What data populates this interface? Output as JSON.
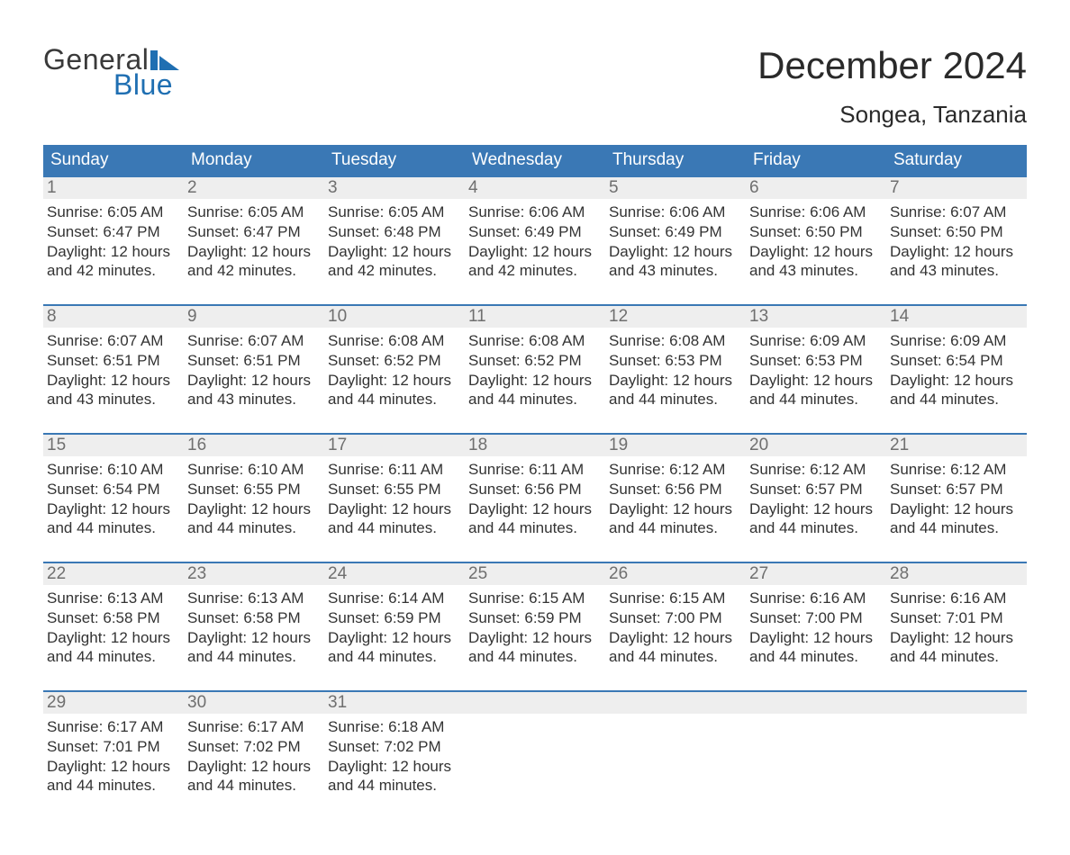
{
  "logo": {
    "word1": "General",
    "word2": "Blue",
    "accent_color": "#1f6fb2",
    "text_color": "#3a3a3a"
  },
  "title": "December 2024",
  "location": "Songea, Tanzania",
  "colors": {
    "header_bg": "#3a78b5",
    "header_text": "#ffffff",
    "daynum_bg": "#eeeeee",
    "daynum_border": "#3a78b5",
    "daynum_text": "#6f6f6f",
    "body_text": "#333333",
    "page_bg": "#ffffff"
  },
  "typography": {
    "title_fontsize": 42,
    "location_fontsize": 26,
    "weekday_fontsize": 19,
    "daynum_fontsize": 19,
    "details_fontsize": 17
  },
  "weekdays": [
    "Sunday",
    "Monday",
    "Tuesday",
    "Wednesday",
    "Thursday",
    "Friday",
    "Saturday"
  ],
  "labels": {
    "sunrise": "Sunrise:",
    "sunset": "Sunset:",
    "daylight": "Daylight:",
    "hours_word": "hours",
    "and_word": "and",
    "minutes_word": "minutes."
  },
  "weeks": [
    [
      {
        "n": "1",
        "sunrise": "6:05 AM",
        "sunset": "6:47 PM",
        "dl_h": "12",
        "dl_m": "42"
      },
      {
        "n": "2",
        "sunrise": "6:05 AM",
        "sunset": "6:47 PM",
        "dl_h": "12",
        "dl_m": "42"
      },
      {
        "n": "3",
        "sunrise": "6:05 AM",
        "sunset": "6:48 PM",
        "dl_h": "12",
        "dl_m": "42"
      },
      {
        "n": "4",
        "sunrise": "6:06 AM",
        "sunset": "6:49 PM",
        "dl_h": "12",
        "dl_m": "42"
      },
      {
        "n": "5",
        "sunrise": "6:06 AM",
        "sunset": "6:49 PM",
        "dl_h": "12",
        "dl_m": "43"
      },
      {
        "n": "6",
        "sunrise": "6:06 AM",
        "sunset": "6:50 PM",
        "dl_h": "12",
        "dl_m": "43"
      },
      {
        "n": "7",
        "sunrise": "6:07 AM",
        "sunset": "6:50 PM",
        "dl_h": "12",
        "dl_m": "43"
      }
    ],
    [
      {
        "n": "8",
        "sunrise": "6:07 AM",
        "sunset": "6:51 PM",
        "dl_h": "12",
        "dl_m": "43"
      },
      {
        "n": "9",
        "sunrise": "6:07 AM",
        "sunset": "6:51 PM",
        "dl_h": "12",
        "dl_m": "43"
      },
      {
        "n": "10",
        "sunrise": "6:08 AM",
        "sunset": "6:52 PM",
        "dl_h": "12",
        "dl_m": "44"
      },
      {
        "n": "11",
        "sunrise": "6:08 AM",
        "sunset": "6:52 PM",
        "dl_h": "12",
        "dl_m": "44"
      },
      {
        "n": "12",
        "sunrise": "6:08 AM",
        "sunset": "6:53 PM",
        "dl_h": "12",
        "dl_m": "44"
      },
      {
        "n": "13",
        "sunrise": "6:09 AM",
        "sunset": "6:53 PM",
        "dl_h": "12",
        "dl_m": "44"
      },
      {
        "n": "14",
        "sunrise": "6:09 AM",
        "sunset": "6:54 PM",
        "dl_h": "12",
        "dl_m": "44"
      }
    ],
    [
      {
        "n": "15",
        "sunrise": "6:10 AM",
        "sunset": "6:54 PM",
        "dl_h": "12",
        "dl_m": "44"
      },
      {
        "n": "16",
        "sunrise": "6:10 AM",
        "sunset": "6:55 PM",
        "dl_h": "12",
        "dl_m": "44"
      },
      {
        "n": "17",
        "sunrise": "6:11 AM",
        "sunset": "6:55 PM",
        "dl_h": "12",
        "dl_m": "44"
      },
      {
        "n": "18",
        "sunrise": "6:11 AM",
        "sunset": "6:56 PM",
        "dl_h": "12",
        "dl_m": "44"
      },
      {
        "n": "19",
        "sunrise": "6:12 AM",
        "sunset": "6:56 PM",
        "dl_h": "12",
        "dl_m": "44"
      },
      {
        "n": "20",
        "sunrise": "6:12 AM",
        "sunset": "6:57 PM",
        "dl_h": "12",
        "dl_m": "44"
      },
      {
        "n": "21",
        "sunrise": "6:12 AM",
        "sunset": "6:57 PM",
        "dl_h": "12",
        "dl_m": "44"
      }
    ],
    [
      {
        "n": "22",
        "sunrise": "6:13 AM",
        "sunset": "6:58 PM",
        "dl_h": "12",
        "dl_m": "44"
      },
      {
        "n": "23",
        "sunrise": "6:13 AM",
        "sunset": "6:58 PM",
        "dl_h": "12",
        "dl_m": "44"
      },
      {
        "n": "24",
        "sunrise": "6:14 AM",
        "sunset": "6:59 PM",
        "dl_h": "12",
        "dl_m": "44"
      },
      {
        "n": "25",
        "sunrise": "6:15 AM",
        "sunset": "6:59 PM",
        "dl_h": "12",
        "dl_m": "44"
      },
      {
        "n": "26",
        "sunrise": "6:15 AM",
        "sunset": "7:00 PM",
        "dl_h": "12",
        "dl_m": "44"
      },
      {
        "n": "27",
        "sunrise": "6:16 AM",
        "sunset": "7:00 PM",
        "dl_h": "12",
        "dl_m": "44"
      },
      {
        "n": "28",
        "sunrise": "6:16 AM",
        "sunset": "7:01 PM",
        "dl_h": "12",
        "dl_m": "44"
      }
    ],
    [
      {
        "n": "29",
        "sunrise": "6:17 AM",
        "sunset": "7:01 PM",
        "dl_h": "12",
        "dl_m": "44"
      },
      {
        "n": "30",
        "sunrise": "6:17 AM",
        "sunset": "7:02 PM",
        "dl_h": "12",
        "dl_m": "44"
      },
      {
        "n": "31",
        "sunrise": "6:18 AM",
        "sunset": "7:02 PM",
        "dl_h": "12",
        "dl_m": "44"
      },
      null,
      null,
      null,
      null
    ]
  ]
}
